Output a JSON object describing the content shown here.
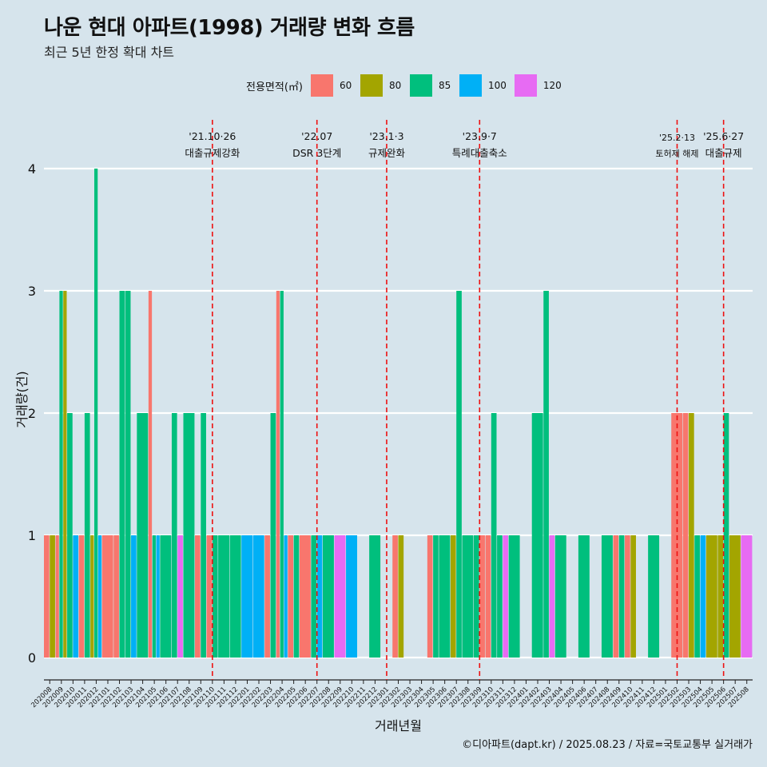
{
  "header": {
    "title": "나운 현대 아파트(1998) 거래량 변화 흐름",
    "subtitle": "최근 5년 한정 확대 차트"
  },
  "legend": {
    "title": "전용면적(㎡)",
    "items": [
      {
        "label": "60",
        "color": "#f8766d"
      },
      {
        "label": "80",
        "color": "#a3a500"
      },
      {
        "label": "85",
        "color": "#00bf7d"
      },
      {
        "label": "100",
        "color": "#00b0f6"
      },
      {
        "label": "120",
        "color": "#e76bf3"
      }
    ]
  },
  "caption": "©디아파트(dapt.kr) / 2025.08.23 / 자료=국토교통부 실거래가",
  "chart_data": {
    "type": "bar",
    "stacking": "dodge",
    "xlabel": "거래년월",
    "ylabel": "거래량(건)",
    "ylim": [
      0,
      4
    ],
    "y_ticks": [
      "0",
      "1",
      "2",
      "3",
      "4"
    ],
    "grid": true,
    "legend_position": "top",
    "categories": [
      "202008",
      "202009",
      "202010",
      "202011",
      "202012",
      "202101",
      "202102",
      "202103",
      "202104",
      "202105",
      "202106",
      "202107",
      "202108",
      "202109",
      "202110",
      "202111",
      "202112",
      "202201",
      "202202",
      "202203",
      "202204",
      "202205",
      "202206",
      "202207",
      "202208",
      "202209",
      "202210",
      "202211",
      "202212",
      "202301",
      "202302",
      "202303",
      "202304",
      "202305",
      "202306",
      "202307",
      "202308",
      "202309",
      "202310",
      "202311",
      "202312",
      "202401",
      "202402",
      "202403",
      "202404",
      "202405",
      "202406",
      "202407",
      "202408",
      "202409",
      "202410",
      "202411",
      "202412",
      "202501",
      "202502",
      "202503",
      "202504",
      "202505",
      "202506",
      "202507",
      "202508"
    ],
    "transactions": [
      {
        "month": "202008",
        "bars": [
          {
            "area": "60",
            "value": 1
          },
          {
            "area": "80",
            "value": 1
          }
        ]
      },
      {
        "month": "202009",
        "bars": [
          {
            "area": "60",
            "value": 1
          },
          {
            "area": "85",
            "value": 3
          },
          {
            "area": "80",
            "value": 3
          }
        ]
      },
      {
        "month": "202010",
        "bars": [
          {
            "area": "85",
            "value": 2
          },
          {
            "area": "100",
            "value": 1
          }
        ]
      },
      {
        "month": "202011",
        "bars": [
          {
            "area": "60",
            "value": 1
          },
          {
            "area": "85",
            "value": 2
          }
        ]
      },
      {
        "month": "202012",
        "bars": [
          {
            "area": "80",
            "value": 1
          },
          {
            "area": "85",
            "value": 4
          },
          {
            "area": "100",
            "value": 1
          }
        ]
      },
      {
        "month": "202101",
        "bars": [
          {
            "area": "60",
            "value": 1
          }
        ]
      },
      {
        "month": "202102",
        "bars": [
          {
            "area": "60",
            "value": 1
          },
          {
            "area": "85",
            "value": 3
          }
        ]
      },
      {
        "month": "202103",
        "bars": [
          {
            "area": "85",
            "value": 3
          },
          {
            "area": "100",
            "value": 1
          }
        ]
      },
      {
        "month": "202104",
        "bars": [
          {
            "area": "85",
            "value": 2
          }
        ]
      },
      {
        "month": "202105",
        "bars": [
          {
            "area": "60",
            "value": 3
          },
          {
            "area": "85",
            "value": 1
          },
          {
            "area": "100",
            "value": 1
          }
        ]
      },
      {
        "month": "202106",
        "bars": [
          {
            "area": "85",
            "value": 1
          }
        ]
      },
      {
        "month": "202107",
        "bars": [
          {
            "area": "85",
            "value": 2
          },
          {
            "area": "120",
            "value": 1
          }
        ]
      },
      {
        "month": "202108",
        "bars": [
          {
            "area": "85",
            "value": 2
          }
        ]
      },
      {
        "month": "202109",
        "bars": [
          {
            "area": "60",
            "value": 1
          },
          {
            "area": "85",
            "value": 2
          }
        ]
      },
      {
        "month": "202110",
        "bars": [
          {
            "area": "60",
            "value": 1
          },
          {
            "area": "85",
            "value": 1
          }
        ]
      },
      {
        "month": "202111",
        "bars": [
          {
            "area": "85",
            "value": 1
          }
        ]
      },
      {
        "month": "202112",
        "bars": [
          {
            "area": "85",
            "value": 1
          }
        ]
      },
      {
        "month": "202201",
        "bars": [
          {
            "area": "100",
            "value": 1
          }
        ]
      },
      {
        "month": "202202",
        "bars": [
          {
            "area": "100",
            "value": 1
          }
        ]
      },
      {
        "month": "202203",
        "bars": [
          {
            "area": "60",
            "value": 1
          },
          {
            "area": "85",
            "value": 2
          }
        ]
      },
      {
        "month": "202204",
        "bars": [
          {
            "area": "60",
            "value": 3
          },
          {
            "area": "85",
            "value": 3
          },
          {
            "area": "100",
            "value": 1
          }
        ]
      },
      {
        "month": "202205",
        "bars": [
          {
            "area": "60",
            "value": 1
          },
          {
            "area": "85",
            "value": 1
          }
        ]
      },
      {
        "month": "202206",
        "bars": [
          {
            "area": "60",
            "value": 1
          }
        ]
      },
      {
        "month": "202207",
        "bars": [
          {
            "area": "85",
            "value": 1
          },
          {
            "area": "100",
            "value": 1
          }
        ]
      },
      {
        "month": "202208",
        "bars": [
          {
            "area": "85",
            "value": 1
          }
        ]
      },
      {
        "month": "202209",
        "bars": [
          {
            "area": "120",
            "value": 1
          }
        ]
      },
      {
        "month": "202210",
        "bars": [
          {
            "area": "100",
            "value": 1
          }
        ]
      },
      {
        "month": "202212",
        "bars": [
          {
            "area": "85",
            "value": 1
          }
        ]
      },
      {
        "month": "202302",
        "bars": [
          {
            "area": "60",
            "value": 1
          },
          {
            "area": "80",
            "value": 1
          }
        ]
      },
      {
        "month": "202305",
        "bars": [
          {
            "area": "60",
            "value": 1
          },
          {
            "area": "85",
            "value": 1
          }
        ]
      },
      {
        "month": "202306",
        "bars": [
          {
            "area": "85",
            "value": 1
          }
        ]
      },
      {
        "month": "202307",
        "bars": [
          {
            "area": "80",
            "value": 1
          },
          {
            "area": "85",
            "value": 3
          }
        ]
      },
      {
        "month": "202308",
        "bars": [
          {
            "area": "85",
            "value": 1
          }
        ]
      },
      {
        "month": "202309",
        "bars": [
          {
            "area": "85",
            "value": 1
          },
          {
            "area": "60",
            "value": 1
          }
        ]
      },
      {
        "month": "202310",
        "bars": [
          {
            "area": "60",
            "value": 1
          },
          {
            "area": "85",
            "value": 2
          }
        ]
      },
      {
        "month": "202311",
        "bars": [
          {
            "area": "85",
            "value": 1
          },
          {
            "area": "120",
            "value": 1
          }
        ]
      },
      {
        "month": "202312",
        "bars": [
          {
            "area": "85",
            "value": 1
          }
        ]
      },
      {
        "month": "202402",
        "bars": [
          {
            "area": "85",
            "value": 2
          }
        ]
      },
      {
        "month": "202403",
        "bars": [
          {
            "area": "85",
            "value": 3
          },
          {
            "area": "120",
            "value": 1
          }
        ]
      },
      {
        "month": "202404",
        "bars": [
          {
            "area": "85",
            "value": 1
          }
        ]
      },
      {
        "month": "202406",
        "bars": [
          {
            "area": "85",
            "value": 1
          }
        ]
      },
      {
        "month": "202408",
        "bars": [
          {
            "area": "85",
            "value": 1
          }
        ]
      },
      {
        "month": "202409",
        "bars": [
          {
            "area": "60",
            "value": 1
          },
          {
            "area": "85",
            "value": 1
          }
        ]
      },
      {
        "month": "202410",
        "bars": [
          {
            "area": "60",
            "value": 1
          },
          {
            "area": "80",
            "value": 1
          }
        ]
      },
      {
        "month": "202412",
        "bars": [
          {
            "area": "85",
            "value": 1
          }
        ]
      },
      {
        "month": "202502",
        "bars": [
          {
            "area": "60",
            "value": 2
          }
        ]
      },
      {
        "month": "202503",
        "bars": [
          {
            "area": "60",
            "value": 2
          },
          {
            "area": "80",
            "value": 2
          }
        ]
      },
      {
        "month": "202504",
        "bars": [
          {
            "area": "85",
            "value": 1
          },
          {
            "area": "100",
            "value": 1
          }
        ]
      },
      {
        "month": "202505",
        "bars": [
          {
            "area": "80",
            "value": 1
          }
        ]
      },
      {
        "month": "202506",
        "bars": [
          {
            "area": "80",
            "value": 1
          },
          {
            "area": "85",
            "value": 2
          }
        ]
      },
      {
        "month": "202507",
        "bars": [
          {
            "area": "80",
            "value": 1
          }
        ]
      },
      {
        "month": "202508",
        "bars": [
          {
            "area": "120",
            "value": 1
          }
        ]
      }
    ],
    "events": [
      {
        "month": "202110",
        "date": "'21.10·26",
        "label": "대출규제강화"
      },
      {
        "month": "202207",
        "date": "'22.07",
        "label": "DSR 3단계"
      },
      {
        "month": "202301",
        "date": "'23.1·3",
        "label": "규제완화"
      },
      {
        "month": "202309",
        "date": "'23.9·7",
        "label": "특례대출축소"
      },
      {
        "month": "202502",
        "date": "'25.2·13",
        "label": "토허제 해제"
      },
      {
        "month": "202506",
        "date": "'25.6·27",
        "label": "대출규제"
      }
    ]
  }
}
